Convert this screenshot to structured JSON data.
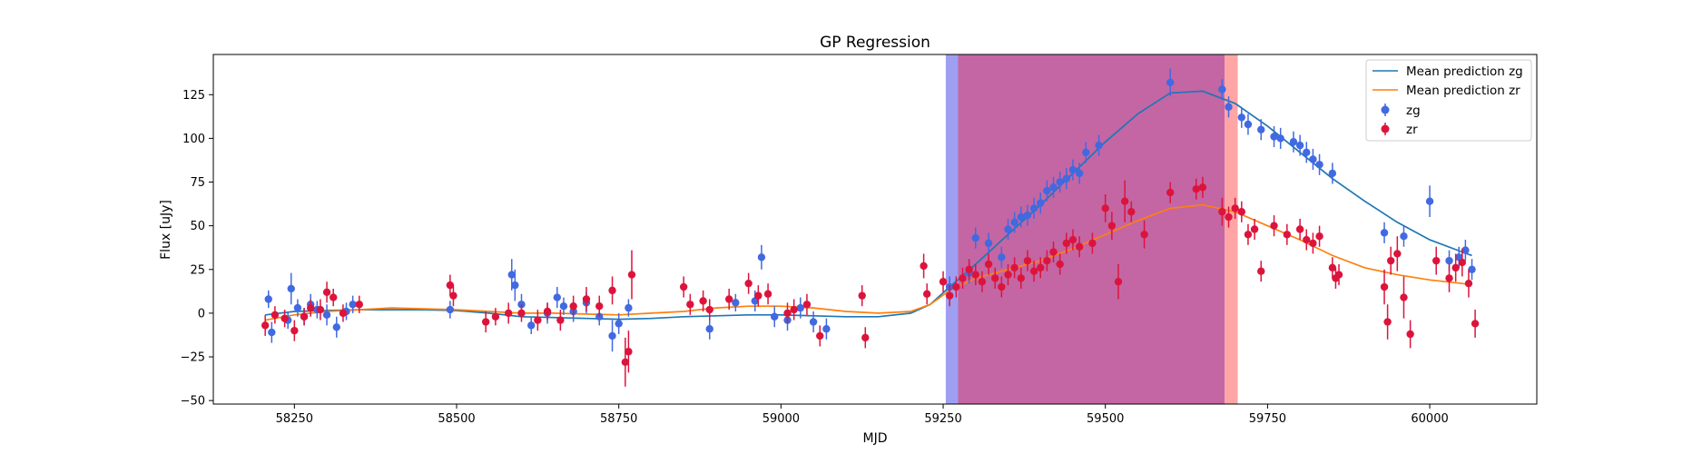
{
  "chart_data": {
    "type": "scatter",
    "title": "GP Regression",
    "xlabel": "MJD",
    "ylabel": "Flux [uJy]",
    "xlim": [
      58125,
      60165
    ],
    "ylim": [
      -52,
      148
    ],
    "xticks": [
      58250,
      58500,
      58750,
      59000,
      59250,
      59500,
      59750,
      60000
    ],
    "yticks": [
      -50,
      -25,
      0,
      25,
      50,
      75,
      100,
      125
    ],
    "grid": false,
    "legend_position": "top-right",
    "shaded_regions": [
      {
        "x0": 59254,
        "x1": 59273,
        "color": "#9f9ff2"
      },
      {
        "x0": 59273,
        "x1": 59684,
        "color": "#c466a4"
      },
      {
        "x0": 59684,
        "x1": 59704,
        "color": "#ffa5a5"
      }
    ],
    "series": [
      {
        "name": "Mean prediction zg",
        "kind": "line",
        "color": "#1f77b4",
        "x": [
          58205,
          58250,
          58300,
          58350,
          58400,
          58450,
          58500,
          58550,
          58600,
          58650,
          58700,
          58750,
          58800,
          58850,
          58900,
          58950,
          59000,
          59050,
          59100,
          59150,
          59200,
          59230,
          59260,
          59300,
          59350,
          59400,
          59450,
          59500,
          59550,
          59600,
          59650,
          59700,
          59750,
          59800,
          59850,
          59900,
          59950,
          60000,
          60050,
          60065
        ],
        "y": [
          -1,
          1,
          1.5,
          2,
          2,
          2,
          1.5,
          0,
          -2,
          -2.5,
          -3,
          -3.5,
          -3,
          -2,
          -1.5,
          -1,
          -1,
          -1.5,
          -2,
          -2,
          0,
          5,
          15,
          28,
          45,
          62,
          80,
          98,
          114,
          126,
          127,
          120,
          107,
          92,
          77,
          64,
          52,
          42,
          35,
          33
        ]
      },
      {
        "name": "Mean prediction zr",
        "kind": "line",
        "color": "#ff7f0e",
        "x": [
          58205,
          58250,
          58300,
          58350,
          58400,
          58450,
          58500,
          58550,
          58600,
          58650,
          58700,
          58750,
          58800,
          58850,
          58900,
          58950,
          59000,
          59050,
          59100,
          59150,
          59200,
          59230,
          59260,
          59300,
          59350,
          59400,
          59450,
          59500,
          59550,
          59600,
          59650,
          59700,
          59750,
          59800,
          59850,
          59900,
          59950,
          60000,
          60050,
          60065
        ],
        "y": [
          -4,
          -1,
          1,
          2,
          3,
          2.5,
          2,
          1,
          0,
          0,
          -0.5,
          -1,
          0,
          1,
          3,
          4,
          4,
          3,
          1,
          0,
          1,
          5,
          13,
          20,
          25,
          30,
          37,
          45,
          53,
          60,
          62,
          58,
          50,
          42,
          33,
          26,
          22,
          19,
          17,
          16
        ]
      },
      {
        "name": "zg",
        "kind": "errorbar",
        "color": "#4169e1",
        "x": [
          58210,
          58215,
          58240,
          58245,
          58255,
          58265,
          58275,
          58285,
          58300,
          58315,
          58330,
          58340,
          58490,
          58585,
          58590,
          58600,
          58615,
          58640,
          58655,
          58665,
          58680,
          58700,
          58720,
          58740,
          58750,
          58765,
          58890,
          58930,
          58960,
          58970,
          58990,
          59010,
          59030,
          59050,
          59070,
          59260,
          59290,
          59300,
          59320,
          59340,
          59350,
          59360,
          59370,
          59380,
          59390,
          59400,
          59410,
          59420,
          59430,
          59440,
          59450,
          59460,
          59470,
          59490,
          59600,
          59680,
          59690,
          59710,
          59720,
          59740,
          59760,
          59770,
          59790,
          59800,
          59810,
          59820,
          59830,
          59850,
          59930,
          59960,
          60000,
          60030,
          60045,
          60055,
          60065
        ],
        "y": [
          8,
          -11,
          -4,
          14,
          3,
          -2,
          5,
          2,
          -1,
          -8,
          1,
          5,
          2,
          22,
          16,
          5,
          -7,
          0,
          9,
          4,
          1,
          6,
          -2,
          -13,
          -6,
          3,
          -9,
          6,
          7,
          32,
          -2,
          -4,
          3,
          -5,
          -9,
          15,
          23,
          43,
          40,
          32,
          48,
          52,
          55,
          56,
          60,
          63,
          70,
          72,
          75,
          77,
          82,
          80,
          92,
          96,
          132,
          128,
          118,
          112,
          108,
          105,
          101,
          100,
          98,
          96,
          92,
          88,
          85,
          80,
          46,
          44,
          64,
          30,
          32,
          36,
          25
        ],
        "yerr": [
          5,
          6,
          5,
          9,
          5,
          5,
          6,
          5,
          6,
          6,
          5,
          5,
          5,
          9,
          9,
          6,
          5,
          6,
          6,
          5,
          6,
          6,
          5,
          9,
          6,
          5,
          6,
          5,
          6,
          7,
          6,
          6,
          6,
          6,
          6,
          6,
          6,
          6,
          6,
          6,
          6,
          6,
          6,
          6,
          6,
          6,
          6,
          6,
          6,
          6,
          6,
          6,
          6,
          6,
          8,
          6,
          6,
          6,
          6,
          6,
          6,
          6,
          6,
          6,
          6,
          6,
          6,
          6,
          6,
          6,
          9,
          6,
          6,
          6,
          6
        ]
      },
      {
        "name": "zr",
        "kind": "errorbar",
        "color": "#dc143c",
        "x": [
          58205,
          58220,
          58235,
          58250,
          58265,
          58275,
          58290,
          58300,
          58310,
          58325,
          58350,
          58490,
          58495,
          58545,
          58560,
          58580,
          58600,
          58625,
          58640,
          58660,
          58680,
          58700,
          58720,
          58740,
          58760,
          58765,
          58770,
          58850,
          58860,
          58880,
          58890,
          58920,
          58950,
          58965,
          58980,
          59010,
          59020,
          59040,
          59060,
          59125,
          59130,
          59220,
          59225,
          59250,
          59260,
          59270,
          59280,
          59290,
          59300,
          59310,
          59320,
          59330,
          59340,
          59350,
          59360,
          59370,
          59380,
          59390,
          59400,
          59410,
          59420,
          59430,
          59440,
          59450,
          59460,
          59480,
          59500,
          59510,
          59520,
          59530,
          59540,
          59560,
          59600,
          59640,
          59650,
          59680,
          59690,
          59700,
          59710,
          59720,
          59730,
          59740,
          59760,
          59780,
          59800,
          59810,
          59820,
          59830,
          59850,
          59855,
          59860,
          59930,
          59935,
          59940,
          59950,
          59960,
          59970,
          60010,
          60030,
          60040,
          60050,
          60060,
          60070
        ],
        "y": [
          -7,
          -1,
          -3,
          -10,
          -2,
          3,
          2,
          12,
          9,
          0,
          5,
          16,
          10,
          -5,
          -2,
          0,
          0,
          -4,
          1,
          -4,
          4,
          8,
          4,
          13,
          -28,
          -22,
          22,
          15,
          5,
          7,
          2,
          8,
          17,
          10,
          11,
          0,
          2,
          5,
          -13,
          10,
          -14,
          27,
          11,
          18,
          10,
          15,
          20,
          25,
          22,
          18,
          28,
          20,
          15,
          22,
          26,
          20,
          30,
          24,
          26,
          30,
          35,
          28,
          40,
          42,
          38,
          40,
          60,
          50,
          18,
          64,
          58,
          45,
          69,
          71,
          72,
          58,
          55,
          60,
          58,
          45,
          48,
          24,
          50,
          45,
          48,
          42,
          40,
          44,
          26,
          20,
          22,
          15,
          -5,
          30,
          34,
          9,
          -12,
          30,
          20,
          26,
          29,
          17,
          -6
        ],
        "yerr": [
          6,
          5,
          5,
          6,
          5,
          5,
          6,
          6,
          5,
          5,
          5,
          6,
          6,
          6,
          5,
          6,
          5,
          6,
          5,
          6,
          6,
          7,
          6,
          8,
          14,
          12,
          14,
          6,
          6,
          6,
          6,
          6,
          6,
          6,
          6,
          6,
          6,
          6,
          6,
          6,
          6,
          7,
          6,
          6,
          6,
          6,
          6,
          6,
          6,
          6,
          6,
          6,
          6,
          6,
          6,
          6,
          6,
          6,
          6,
          6,
          6,
          6,
          6,
          6,
          6,
          6,
          8,
          8,
          10,
          12,
          6,
          8,
          6,
          6,
          6,
          8,
          6,
          6,
          6,
          6,
          6,
          6,
          6,
          6,
          6,
          6,
          6,
          6,
          6,
          6,
          6,
          10,
          10,
          8,
          10,
          12,
          8,
          8,
          8,
          8,
          8,
          8,
          8
        ]
      }
    ]
  },
  "legend": {
    "items": [
      {
        "label": "Mean prediction zg",
        "marker": "line",
        "color": "#1f77b4"
      },
      {
        "label": "Mean prediction zr",
        "marker": "line",
        "color": "#ff7f0e"
      },
      {
        "label": "zg",
        "marker": "point",
        "color": "#4169e1"
      },
      {
        "label": "zr",
        "marker": "point",
        "color": "#dc143c"
      }
    ]
  }
}
